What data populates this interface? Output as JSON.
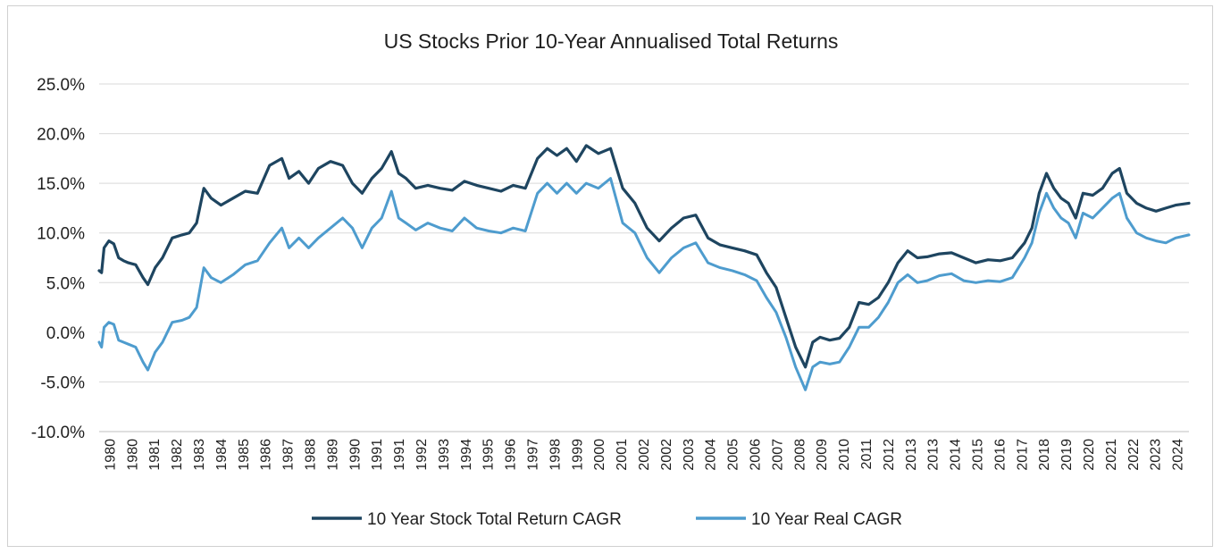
{
  "chart_data": {
    "type": "line",
    "title": "US Stocks Prior 10-Year Annualised Total Returns",
    "xlabel": "",
    "ylabel": "",
    "ylim": [
      -10.0,
      25.0
    ],
    "ytick_values": [
      25,
      20,
      15,
      10,
      5,
      0,
      -5,
      -10
    ],
    "ytick_labels": [
      "25.0%",
      "20.0%",
      "15.0%",
      "10.0%",
      "5.0%",
      "0.0%",
      "-5.0%",
      "-10.0%"
    ],
    "xlim": [
      1980.0,
      2024.75
    ],
    "xtick_labels": [
      "1980",
      "1980",
      "1981",
      "1982",
      "1983",
      "1984",
      "1985",
      "1986",
      "1987",
      "1988",
      "1989",
      "1990",
      "1991",
      "1991",
      "1992",
      "1993",
      "1994",
      "1995",
      "1996",
      "1997",
      "1998",
      "1999",
      "2000",
      "2001",
      "2002",
      "2002",
      "2003",
      "2004",
      "2005",
      "2006",
      "2007",
      "2008",
      "2009",
      "2010",
      "2011",
      "2012",
      "2013",
      "2013",
      "2014",
      "2015",
      "2016",
      "2017",
      "2018",
      "2019",
      "2020",
      "2021",
      "2022",
      "2023",
      "2024"
    ],
    "grid": true,
    "legend_position": "bottom",
    "series": [
      {
        "name": "10 Year Stock Total Return CAGR",
        "color": "#1e4560",
        "x": [
          1980.0,
          1980.1,
          1980.2,
          1980.4,
          1980.6,
          1980.8,
          1981.0,
          1981.2,
          1981.5,
          1981.8,
          1982.0,
          1982.3,
          1982.6,
          1983.0,
          1983.4,
          1983.7,
          1984.0,
          1984.3,
          1984.6,
          1985.0,
          1985.5,
          1986.0,
          1986.5,
          1987.0,
          1987.5,
          1987.8,
          1988.2,
          1988.6,
          1989.0,
          1989.5,
          1990.0,
          1990.4,
          1990.8,
          1991.2,
          1991.6,
          1992.0,
          1992.3,
          1992.6,
          1993.0,
          1993.5,
          1994.0,
          1994.5,
          1995.0,
          1995.5,
          1996.0,
          1996.5,
          1997.0,
          1997.5,
          1998.0,
          1998.4,
          1998.8,
          1999.2,
          1999.6,
          2000.0,
          2000.5,
          2001.0,
          2001.5,
          2002.0,
          2002.5,
          2003.0,
          2003.5,
          2004.0,
          2004.5,
          2005.0,
          2005.5,
          2006.0,
          2006.5,
          2007.0,
          2007.4,
          2007.8,
          2008.2,
          2008.6,
          2009.0,
          2009.3,
          2009.6,
          2010.0,
          2010.4,
          2010.8,
          2011.2,
          2011.6,
          2012.0,
          2012.4,
          2012.8,
          2013.2,
          2013.6,
          2014.0,
          2014.5,
          2015.0,
          2015.5,
          2016.0,
          2016.5,
          2017.0,
          2017.5,
          2018.0,
          2018.3,
          2018.6,
          2018.9,
          2019.2,
          2019.5,
          2019.8,
          2020.1,
          2020.4,
          2020.8,
          2021.2,
          2021.6,
          2021.9,
          2022.2,
          2022.6,
          2023.0,
          2023.4,
          2023.8,
          2024.2,
          2024.75
        ],
        "values": [
          6.2,
          6.0,
          8.5,
          9.2,
          8.9,
          7.5,
          7.2,
          7.0,
          6.8,
          5.5,
          4.8,
          6.5,
          7.5,
          9.5,
          9.8,
          10.0,
          11.0,
          14.5,
          13.5,
          12.8,
          13.5,
          14.2,
          14.0,
          16.8,
          17.5,
          15.5,
          16.2,
          15.0,
          16.5,
          17.2,
          16.8,
          15.0,
          14.0,
          15.5,
          16.5,
          18.2,
          16.0,
          15.5,
          14.5,
          14.8,
          14.5,
          14.3,
          15.2,
          14.8,
          14.5,
          14.2,
          14.8,
          14.5,
          17.5,
          18.5,
          17.8,
          18.5,
          17.2,
          18.8,
          18.0,
          18.5,
          14.5,
          13.0,
          10.5,
          9.2,
          10.5,
          11.5,
          11.8,
          9.5,
          8.8,
          8.5,
          8.2,
          7.8,
          6.0,
          4.5,
          1.5,
          -1.5,
          -3.5,
          -1.0,
          -0.5,
          -0.8,
          -0.6,
          0.5,
          3.0,
          2.8,
          3.5,
          5.0,
          7.0,
          8.2,
          7.5,
          7.6,
          7.9,
          8.0,
          7.5,
          7.0,
          7.3,
          7.2,
          7.5,
          9.0,
          10.5,
          14.0,
          16.0,
          14.5,
          13.5,
          13.0,
          11.5,
          14.0,
          13.8,
          14.5,
          16.0,
          16.5,
          14.0,
          13.0,
          12.5,
          12.2,
          12.5,
          12.8,
          13.0
        ]
      },
      {
        "name": "10 Year Real CAGR",
        "color": "#4e9cce",
        "x": [
          1980.0,
          1980.1,
          1980.2,
          1980.4,
          1980.6,
          1980.8,
          1981.0,
          1981.2,
          1981.5,
          1981.8,
          1982.0,
          1982.3,
          1982.6,
          1983.0,
          1983.4,
          1983.7,
          1984.0,
          1984.3,
          1984.6,
          1985.0,
          1985.5,
          1986.0,
          1986.5,
          1987.0,
          1987.5,
          1987.8,
          1988.2,
          1988.6,
          1989.0,
          1989.5,
          1990.0,
          1990.4,
          1990.8,
          1991.2,
          1991.6,
          1992.0,
          1992.3,
          1992.6,
          1993.0,
          1993.5,
          1994.0,
          1994.5,
          1995.0,
          1995.5,
          1996.0,
          1996.5,
          1997.0,
          1997.5,
          1998.0,
          1998.4,
          1998.8,
          1999.2,
          1999.6,
          2000.0,
          2000.5,
          2001.0,
          2001.5,
          2002.0,
          2002.5,
          2003.0,
          2003.5,
          2004.0,
          2004.5,
          2005.0,
          2005.5,
          2006.0,
          2006.5,
          2007.0,
          2007.4,
          2007.8,
          2008.2,
          2008.6,
          2009.0,
          2009.3,
          2009.6,
          2010.0,
          2010.4,
          2010.8,
          2011.2,
          2011.6,
          2012.0,
          2012.4,
          2012.8,
          2013.2,
          2013.6,
          2014.0,
          2014.5,
          2015.0,
          2015.5,
          2016.0,
          2016.5,
          2017.0,
          2017.5,
          2018.0,
          2018.3,
          2018.6,
          2018.9,
          2019.2,
          2019.5,
          2019.8,
          2020.1,
          2020.4,
          2020.8,
          2021.2,
          2021.6,
          2021.9,
          2022.2,
          2022.6,
          2023.0,
          2023.4,
          2023.8,
          2024.2,
          2024.75
        ],
        "values": [
          -1.0,
          -1.5,
          0.5,
          1.0,
          0.8,
          -0.8,
          -1.0,
          -1.2,
          -1.5,
          -3.0,
          -3.8,
          -2.0,
          -1.0,
          1.0,
          1.2,
          1.5,
          2.5,
          6.5,
          5.5,
          5.0,
          5.8,
          6.8,
          7.2,
          9.0,
          10.5,
          8.5,
          9.5,
          8.5,
          9.5,
          10.5,
          11.5,
          10.5,
          8.5,
          10.5,
          11.5,
          14.2,
          11.5,
          11.0,
          10.3,
          11.0,
          10.5,
          10.2,
          11.5,
          10.5,
          10.2,
          10.0,
          10.5,
          10.2,
          14.0,
          15.0,
          14.0,
          15.0,
          14.0,
          15.0,
          14.5,
          15.5,
          11.0,
          10.0,
          7.5,
          6.0,
          7.5,
          8.5,
          9.0,
          7.0,
          6.5,
          6.2,
          5.8,
          5.2,
          3.5,
          2.0,
          -0.5,
          -3.5,
          -5.8,
          -3.5,
          -3.0,
          -3.2,
          -3.0,
          -1.5,
          0.5,
          0.5,
          1.5,
          3.0,
          5.0,
          5.8,
          5.0,
          5.2,
          5.7,
          5.9,
          5.2,
          5.0,
          5.2,
          5.1,
          5.5,
          7.5,
          9.0,
          12.0,
          14.0,
          12.5,
          11.5,
          11.0,
          9.5,
          12.0,
          11.5,
          12.5,
          13.5,
          14.0,
          11.5,
          10.0,
          9.5,
          9.2,
          9.0,
          9.5,
          9.8
        ]
      }
    ]
  }
}
